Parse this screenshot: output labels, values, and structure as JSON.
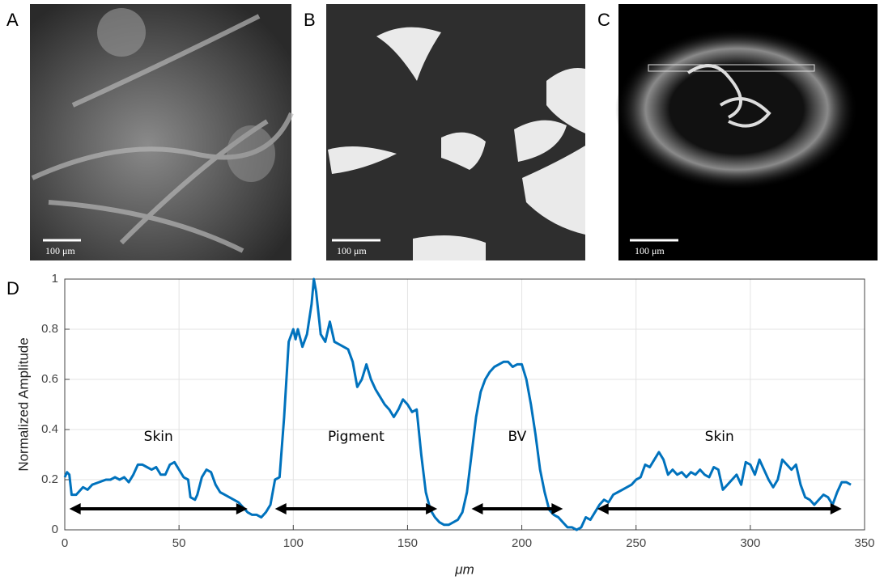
{
  "panels": [
    {
      "label": "A",
      "scale_bar": "100 μm"
    },
    {
      "label": "B",
      "scale_bar": "100 μm"
    },
    {
      "label": "C",
      "scale_bar": "100 μm"
    }
  ],
  "chart_data": {
    "type": "line",
    "panel_label": "D",
    "x_label": "μm",
    "y_label": "Normalized Amplitude",
    "color": "#0072bd",
    "grid": true,
    "xlim": [
      0,
      350
    ],
    "ylim": [
      0,
      1
    ],
    "xticks": [
      0,
      50,
      100,
      150,
      200,
      250,
      300,
      350
    ],
    "yticks": [
      0,
      0.2,
      0.4,
      0.6,
      0.8,
      1
    ],
    "x": [
      0,
      1,
      2,
      3,
      5,
      8,
      10,
      12,
      15,
      18,
      20,
      22,
      24,
      26,
      28,
      30,
      32,
      34,
      36,
      38,
      40,
      42,
      44,
      46,
      48,
      50,
      52,
      54,
      55,
      57,
      58,
      60,
      62,
      64,
      66,
      68,
      70,
      72,
      74,
      76,
      78,
      80,
      82,
      84,
      86,
      88,
      90,
      92,
      94,
      96,
      98,
      100,
      101,
      102,
      104,
      106,
      108,
      109,
      110,
      112,
      114,
      116,
      118,
      120,
      122,
      124,
      126,
      128,
      130,
      132,
      134,
      136,
      138,
      140,
      142,
      144,
      146,
      148,
      150,
      152,
      154,
      156,
      158,
      160,
      162,
      164,
      166,
      168,
      170,
      172,
      174,
      176,
      178,
      180,
      182,
      184,
      186,
      188,
      190,
      192,
      194,
      196,
      198,
      200,
      202,
      204,
      206,
      208,
      210,
      212,
      214,
      216,
      218,
      220,
      222,
      224,
      226,
      228,
      230,
      232,
      234,
      236,
      238,
      240,
      242,
      244,
      246,
      248,
      250,
      252,
      254,
      256,
      258,
      260,
      262,
      264,
      266,
      268,
      270,
      272,
      274,
      276,
      278,
      280,
      282,
      284,
      286,
      288,
      290,
      292,
      294,
      296,
      298,
      300,
      302,
      304,
      306,
      308,
      310,
      312,
      314,
      316,
      318,
      320,
      322,
      324,
      326,
      328,
      330,
      332,
      334,
      336,
      338,
      340,
      342,
      344
    ],
    "values": [
      0.21,
      0.23,
      0.22,
      0.14,
      0.14,
      0.17,
      0.16,
      0.18,
      0.19,
      0.2,
      0.2,
      0.21,
      0.2,
      0.21,
      0.19,
      0.22,
      0.26,
      0.26,
      0.25,
      0.24,
      0.25,
      0.22,
      0.22,
      0.26,
      0.27,
      0.24,
      0.21,
      0.2,
      0.13,
      0.12,
      0.14,
      0.21,
      0.24,
      0.23,
      0.18,
      0.15,
      0.14,
      0.13,
      0.12,
      0.11,
      0.09,
      0.07,
      0.06,
      0.06,
      0.05,
      0.07,
      0.1,
      0.2,
      0.21,
      0.45,
      0.75,
      0.8,
      0.76,
      0.8,
      0.73,
      0.78,
      0.9,
      1.0,
      0.95,
      0.78,
      0.75,
      0.83,
      0.75,
      0.74,
      0.73,
      0.72,
      0.67,
      0.57,
      0.6,
      0.66,
      0.6,
      0.56,
      0.53,
      0.5,
      0.48,
      0.45,
      0.48,
      0.52,
      0.5,
      0.47,
      0.48,
      0.3,
      0.15,
      0.08,
      0.05,
      0.03,
      0.02,
      0.02,
      0.03,
      0.04,
      0.07,
      0.15,
      0.3,
      0.45,
      0.55,
      0.6,
      0.63,
      0.65,
      0.66,
      0.67,
      0.67,
      0.65,
      0.66,
      0.66,
      0.6,
      0.5,
      0.38,
      0.24,
      0.15,
      0.08,
      0.06,
      0.05,
      0.03,
      0.01,
      0.01,
      0,
      0.01,
      0.05,
      0.04,
      0.07,
      0.1,
      0.12,
      0.11,
      0.14,
      0.15,
      0.16,
      0.17,
      0.18,
      0.2,
      0.21,
      0.26,
      0.25,
      0.28,
      0.31,
      0.28,
      0.22,
      0.24,
      0.22,
      0.23,
      0.21,
      0.23,
      0.22,
      0.24,
      0.22,
      0.21,
      0.25,
      0.24,
      0.16,
      0.18,
      0.2,
      0.22,
      0.18,
      0.27,
      0.26,
      0.22,
      0.28,
      0.24,
      0.2,
      0.17,
      0.2,
      0.28,
      0.26,
      0.24,
      0.26,
      0.18,
      0.13,
      0.12,
      0.1,
      0.12,
      0.14,
      0.13,
      0.1,
      0.15,
      0.19,
      0.19,
      0.18
    ],
    "annotations": [
      {
        "text": "Skin",
        "x": [
          2,
          80
        ]
      },
      {
        "text": "Pigment",
        "x": [
          92,
          163
        ]
      },
      {
        "text": "BV",
        "x": [
          178,
          218
        ]
      },
      {
        "text": "Skin",
        "x": [
          233,
          340
        ]
      }
    ]
  }
}
